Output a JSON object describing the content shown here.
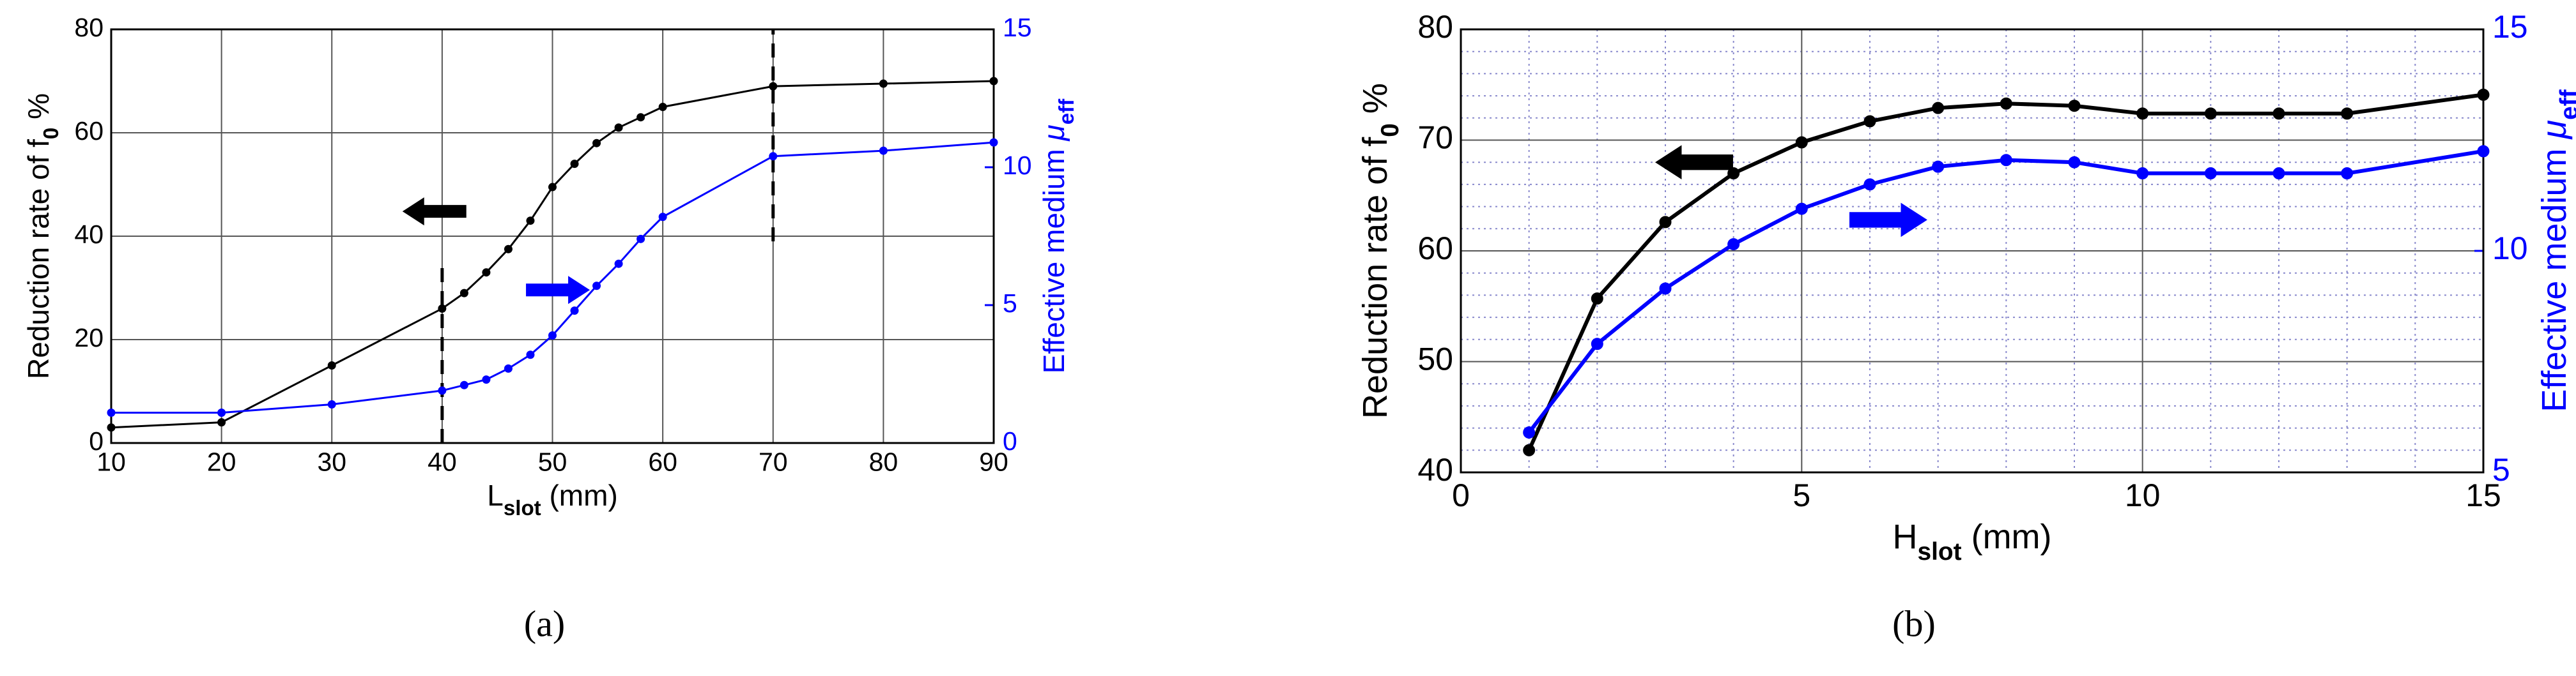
{
  "chart_data": [
    {
      "type": "line",
      "panel_label": "(a)",
      "xlabel": [
        {
          "text": "L"
        },
        {
          "text": "slot",
          "style": "sub"
        },
        {
          "text": " (mm)"
        }
      ],
      "ylabel": [
        {
          "text": "Reduction rate of f"
        },
        {
          "text": "0",
          "style": "sub"
        },
        {
          "text": " %"
        }
      ],
      "y2label": [
        {
          "text": "Effective medium "
        },
        {
          "text": "μ",
          "style": "italic"
        },
        {
          "text": "eff",
          "style": "sub"
        }
      ],
      "xlim": [
        10,
        90
      ],
      "xticks": [
        10,
        20,
        30,
        40,
        50,
        60,
        70,
        80,
        90
      ],
      "ylim": [
        0,
        80
      ],
      "yticks": [
        0,
        20,
        40,
        60,
        80
      ],
      "y2lim": [
        0,
        15
      ],
      "y2ticks": [
        0,
        5,
        10,
        15
      ],
      "grid": true,
      "x": [
        10,
        20,
        30,
        40,
        42,
        44,
        46,
        48,
        50,
        52,
        54,
        56,
        58,
        60,
        70,
        80,
        90
      ],
      "series": [
        {
          "color": "#000000",
          "values": [
            3,
            4,
            15,
            26,
            29,
            33,
            37.5,
            43,
            49.5,
            54,
            58,
            61,
            63,
            65,
            69,
            69.5,
            70
          ]
        },
        {
          "color": "#0000ff",
          "axis": "y2",
          "values": [
            1.1,
            1.1,
            1.4,
            1.9,
            2.1,
            2.3,
            2.7,
            3.2,
            3.9,
            4.8,
            5.7,
            6.5,
            7.4,
            8.2,
            10.4,
            10.6,
            10.9
          ]
        }
      ],
      "dashed_lines": [
        {
          "x": 40,
          "y": [
            0,
            34
          ]
        },
        {
          "x": 70,
          "y": [
            39,
            80
          ]
        }
      ]
    },
    {
      "type": "line",
      "panel_label": "(b)",
      "xlabel": [
        {
          "text": "H"
        },
        {
          "text": "slot",
          "style": "sub"
        },
        {
          "text": " (mm)"
        }
      ],
      "ylabel": [
        {
          "text": "Reduction rate of f"
        },
        {
          "text": "0",
          "style": "sub"
        },
        {
          "text": " %"
        }
      ],
      "y2label": [
        {
          "text": "Effective medium "
        },
        {
          "text": "μ",
          "style": "italic"
        },
        {
          "text": "eff",
          "style": "sub"
        }
      ],
      "xlim": [
        0,
        15
      ],
      "xticks": [
        0,
        5,
        10,
        15
      ],
      "ylim": [
        40,
        80
      ],
      "yticks": [
        40,
        50,
        60,
        70,
        80
      ],
      "y2lim": [
        5,
        15
      ],
      "y2ticks": [
        5,
        10,
        15
      ],
      "grid": true,
      "minor_xticks": [
        1,
        2,
        3,
        4,
        6,
        7,
        8,
        9,
        11,
        12,
        13,
        14
      ],
      "minor_yticks": [
        42,
        44,
        46,
        48,
        52,
        54,
        56,
        58,
        62,
        64,
        66,
        68,
        72,
        74,
        76,
        78
      ],
      "x": [
        1,
        2,
        3,
        4,
        5,
        6,
        7,
        8,
        9,
        10,
        11,
        12,
        13,
        15
      ],
      "series": [
        {
          "color": "#000000",
          "values": [
            42,
            55.7,
            62.6,
            67,
            69.8,
            71.7,
            72.9,
            73.3,
            73.1,
            72.4,
            72.4,
            72.4,
            72.4,
            74.1
          ]
        },
        {
          "color": "#0000ff",
          "axis": "y2",
          "values": [
            5.9,
            7.9,
            9.15,
            10.15,
            10.95,
            11.5,
            11.9,
            12.05,
            12,
            11.75,
            11.75,
            11.75,
            11.75,
            12.25
          ]
        }
      ]
    }
  ]
}
